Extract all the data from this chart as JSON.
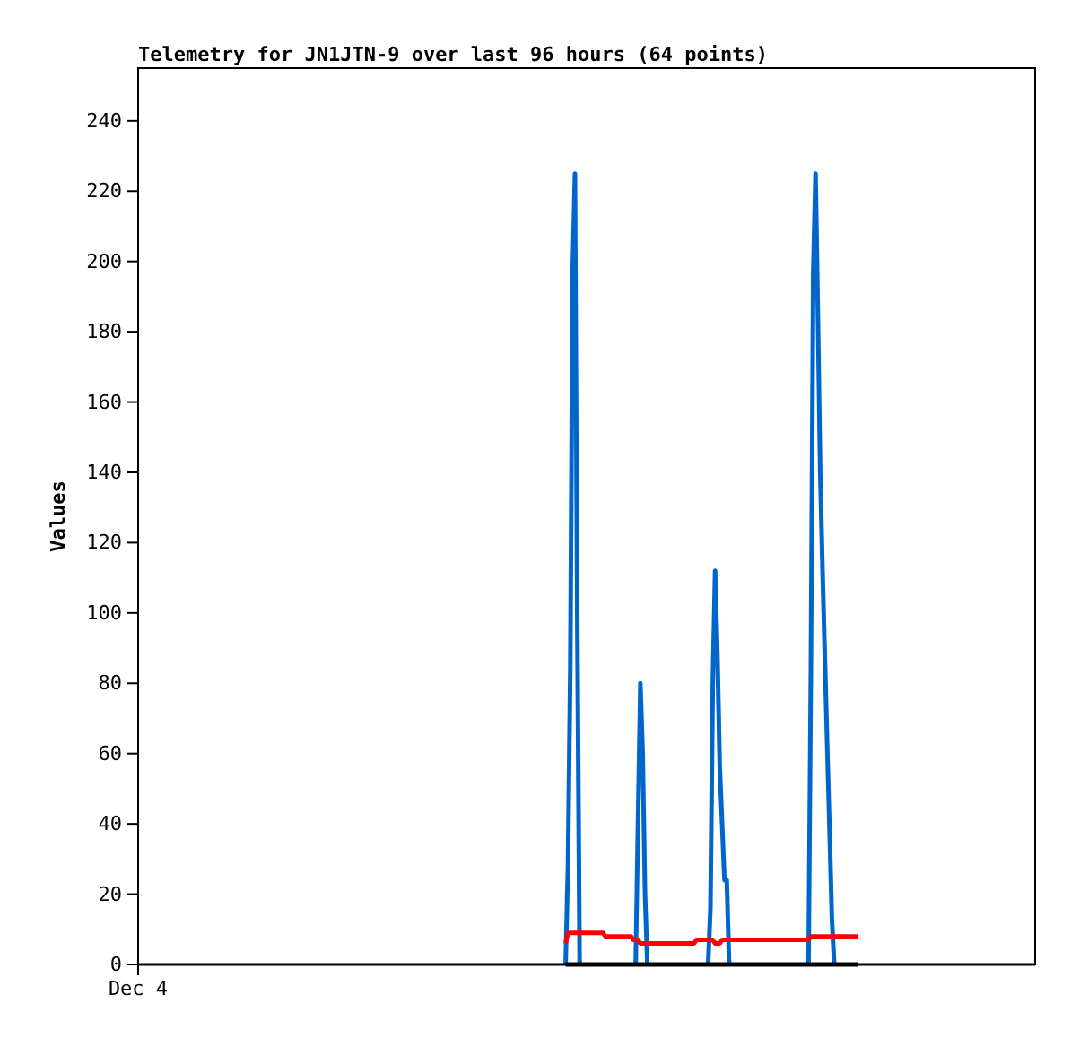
{
  "chart_data": {
    "type": "line",
    "title": "Telemetry for JN1JTN-9 over last 96 hours (64 points)",
    "ylabel": "Values",
    "ylim": [
      0,
      255
    ],
    "yticks": [
      0,
      20,
      40,
      60,
      80,
      100,
      120,
      140,
      160,
      180,
      200,
      220,
      240
    ],
    "grid": false,
    "categories": [
      "Dec 4",
      null,
      null,
      null,
      null,
      null,
      null,
      null,
      null,
      null,
      null,
      null,
      null,
      null,
      null,
      null,
      null,
      null,
      null,
      null,
      null,
      null,
      null,
      null,
      null,
      null,
      null,
      null,
      null,
      null,
      null,
      null,
      null,
      null,
      null,
      null,
      null,
      null,
      null,
      null,
      null,
      null,
      null,
      null,
      null,
      null,
      null,
      null,
      null,
      null,
      null,
      null,
      null,
      null,
      null,
      null,
      null,
      null,
      null,
      null,
      null,
      null,
      null,
      null,
      null,
      null,
      null,
      null,
      null,
      null,
      null,
      null,
      null,
      null,
      null,
      null,
      null,
      null,
      null,
      null,
      null,
      null,
      null,
      null,
      null,
      null,
      null,
      null,
      null,
      null,
      null,
      null,
      null,
      null,
      null,
      null,
      null,
      null,
      null,
      null,
      null,
      null,
      null,
      null,
      null,
      null,
      null,
      null,
      null,
      null,
      null,
      null,
      null,
      null,
      null,
      null,
      null,
      null,
      null,
      null,
      null,
      null,
      null,
      null,
      null,
      null,
      null,
      null,
      null,
      null,
      null,
      null,
      null,
      null,
      null,
      null,
      null,
      null,
      null,
      null,
      null,
      null,
      null,
      null,
      null,
      null,
      null,
      null,
      null,
      null,
      null,
      null,
      null,
      null,
      null,
      null,
      null,
      null,
      null,
      null,
      null,
      null,
      null,
      null,
      null,
      null,
      null,
      null,
      null,
      null,
      null,
      null,
      null,
      null,
      null,
      null,
      null,
      null,
      null,
      null,
      null,
      null,
      null,
      null,
      null,
      null,
      null,
      null,
      null,
      null,
      null,
      null,
      null,
      null,
      null,
      null,
      null,
      null,
      null,
      null,
      null,
      null,
      null,
      null,
      null,
      null,
      null,
      null,
      null,
      null,
      null,
      null,
      null,
      null,
      null,
      null,
      null,
      null,
      null,
      null,
      null,
      null,
      null,
      null,
      null,
      null,
      null,
      null,
      null,
      null,
      null,
      null,
      null,
      null,
      null,
      null,
      null,
      null,
      null,
      null,
      null,
      null,
      null,
      null,
      null,
      null,
      null,
      null,
      null,
      null,
      null,
      null,
      null,
      null,
      null,
      null,
      null,
      null,
      null,
      null,
      null,
      null,
      null,
      null,
      null,
      null,
      null,
      null,
      null,
      null,
      null,
      null,
      null,
      null,
      null,
      null,
      null,
      null,
      null,
      null,
      null,
      null,
      null,
      null,
      null,
      null,
      null,
      null,
      null,
      null,
      null,
      null,
      null,
      null,
      null,
      null,
      null,
      null,
      null,
      null,
      null,
      null,
      null,
      null,
      null,
      null,
      null,
      null,
      null,
      null,
      null,
      null,
      null,
      null,
      null,
      null,
      null,
      null,
      null,
      null,
      null,
      null,
      null,
      null,
      null,
      null,
      null,
      null,
      null,
      null,
      null,
      null,
      null,
      null,
      null,
      null,
      null,
      null,
      null,
      null,
      null,
      null,
      null,
      null,
      null,
      null,
      null,
      null,
      null,
      null,
      null,
      null,
      null,
      null,
      null,
      null,
      null,
      null,
      null,
      null,
      null,
      null,
      null,
      null,
      null,
      null,
      null,
      null,
      null,
      null,
      null,
      null,
      null,
      null,
      null,
      null,
      null,
      null,
      null,
      null,
      null,
      null,
      null,
      null,
      null
    ],
    "series": [
      {
        "color": "#0066cc",
        "values": [
          null,
          null,
          null,
          null,
          null,
          null,
          null,
          null,
          null,
          null,
          null,
          null,
          null,
          null,
          null,
          null,
          null,
          null,
          null,
          null,
          null,
          null,
          null,
          null,
          null,
          null,
          null,
          null,
          null,
          null,
          null,
          null,
          null,
          null,
          null,
          null,
          null,
          null,
          null,
          null,
          null,
          null,
          null,
          null,
          null,
          null,
          null,
          null,
          null,
          null,
          null,
          null,
          null,
          null,
          null,
          null,
          null,
          null,
          null,
          null,
          null,
          null,
          null,
          null,
          null,
          null,
          null,
          null,
          null,
          null,
          null,
          null,
          null,
          null,
          null,
          null,
          null,
          null,
          null,
          null,
          null,
          null,
          null,
          null,
          null,
          null,
          null,
          null,
          null,
          null,
          null,
          null,
          null,
          null,
          null,
          null,
          null,
          null,
          null,
          null,
          null,
          null,
          null,
          null,
          null,
          null,
          null,
          null,
          null,
          null,
          null,
          null,
          null,
          null,
          null,
          null,
          null,
          null,
          null,
          null,
          null,
          null,
          null,
          null,
          null,
          null,
          null,
          null,
          null,
          null,
          null,
          null,
          null,
          null,
          null,
          null,
          null,
          null,
          null,
          null,
          null,
          null,
          null,
          null,
          null,
          null,
          null,
          null,
          null,
          null,
          null,
          null,
          null,
          null,
          null,
          null,
          null,
          null,
          null,
          null,
          null,
          null,
          null,
          null,
          null,
          null,
          null,
          null,
          null,
          null,
          null,
          null,
          null,
          null,
          null,
          null,
          null,
          null,
          null,
          null,
          null,
          null,
          null,
          0,
          28,
          84,
          197,
          225,
          97,
          0,
          null,
          null,
          null,
          null,
          null,
          null,
          null,
          null,
          null,
          null,
          null,
          null,
          null,
          null,
          null,
          null,
          null,
          null,
          null,
          null,
          null,
          null,
          null,
          0,
          41,
          80,
          60,
          20,
          0,
          null,
          null,
          null,
          null,
          null,
          null,
          null,
          null,
          null,
          null,
          null,
          null,
          null,
          null,
          null,
          null,
          null,
          null,
          null,
          null,
          null,
          null,
          null,
          null,
          null,
          0,
          16,
          80,
          112,
          88,
          56,
          40,
          24,
          24,
          0,
          null,
          null,
          null,
          null,
          null,
          null,
          null,
          null,
          null,
          null,
          null,
          null,
          null,
          null,
          null,
          null,
          null,
          null,
          null,
          null,
          null,
          null,
          null,
          null,
          null,
          null,
          null,
          null,
          null,
          null,
          null,
          null,
          null,
          0,
          84,
          197,
          225,
          185,
          140,
          112,
          87,
          62,
          38,
          13,
          0,
          null,
          null,
          null,
          null,
          null,
          null,
          null,
          null,
          null,
          null,
          null,
          null,
          null,
          null,
          null,
          null,
          null,
          null,
          null,
          null,
          null,
          null,
          null,
          null,
          null,
          null,
          null,
          null,
          null,
          null,
          null,
          null,
          null,
          null,
          null,
          null,
          null,
          null,
          null,
          null,
          null,
          null,
          null,
          null,
          null,
          null,
          null,
          null,
          null,
          null,
          null,
          null,
          null,
          null,
          null,
          null,
          null,
          null,
          null,
          null,
          null,
          null,
          null,
          null,
          null,
          null,
          null,
          null,
          null,
          null,
          null,
          null,
          null,
          null,
          null,
          null,
          null,
          null,
          null,
          null,
          null,
          null,
          null,
          null,
          null,
          null
        ]
      },
      {
        "color": "#ff0000",
        "values": [
          null,
          null,
          null,
          null,
          null,
          null,
          null,
          null,
          null,
          null,
          null,
          null,
          null,
          null,
          null,
          null,
          null,
          null,
          null,
          null,
          null,
          null,
          null,
          null,
          null,
          null,
          null,
          null,
          null,
          null,
          null,
          null,
          null,
          null,
          null,
          null,
          null,
          null,
          null,
          null,
          null,
          null,
          null,
          null,
          null,
          null,
          null,
          null,
          null,
          null,
          null,
          null,
          null,
          null,
          null,
          null,
          null,
          null,
          null,
          null,
          null,
          null,
          null,
          null,
          null,
          null,
          null,
          null,
          null,
          null,
          null,
          null,
          null,
          null,
          null,
          null,
          null,
          null,
          null,
          null,
          null,
          null,
          null,
          null,
          null,
          null,
          null,
          null,
          null,
          null,
          null,
          null,
          null,
          null,
          null,
          null,
          null,
          null,
          null,
          null,
          null,
          null,
          null,
          null,
          null,
          null,
          null,
          null,
          null,
          null,
          null,
          null,
          null,
          null,
          null,
          null,
          null,
          null,
          null,
          null,
          null,
          null,
          null,
          null,
          null,
          null,
          null,
          null,
          null,
          null,
          null,
          null,
          null,
          null,
          null,
          null,
          null,
          null,
          null,
          null,
          null,
          null,
          null,
          null,
          null,
          null,
          null,
          null,
          null,
          null,
          null,
          null,
          null,
          null,
          null,
          null,
          null,
          null,
          null,
          null,
          null,
          null,
          null,
          null,
          null,
          null,
          null,
          null,
          null,
          null,
          null,
          null,
          null,
          null,
          null,
          null,
          null,
          null,
          null,
          null,
          null,
          null,
          null,
          6,
          9,
          9,
          9,
          9,
          9,
          9,
          9,
          9,
          9,
          9,
          9,
          9,
          9,
          9,
          9,
          9,
          8,
          8,
          8,
          8,
          8,
          8,
          8,
          8,
          8,
          8,
          8,
          8,
          7,
          7,
          7,
          6,
          6,
          6,
          6,
          6,
          6,
          6,
          6,
          6,
          6,
          6,
          6,
          6,
          6,
          6,
          6,
          6,
          6,
          6,
          6,
          6,
          6,
          6,
          6,
          7,
          7,
          7,
          7,
          7,
          7,
          7,
          7,
          6,
          6,
          6,
          7,
          7,
          7,
          7,
          7,
          7,
          7,
          7,
          7,
          7,
          7,
          7,
          7,
          7,
          7,
          7,
          7,
          7,
          7,
          7,
          7,
          7,
          7,
          7,
          7,
          7,
          7,
          7,
          7,
          7,
          7,
          7,
          7,
          7,
          7,
          7,
          7,
          7,
          8,
          8,
          8,
          8,
          8,
          8,
          8,
          8,
          8,
          8,
          8,
          8,
          8,
          8,
          8,
          8,
          8,
          8,
          8,
          8,
          8,
          null,
          null,
          null,
          null,
          null,
          null,
          null,
          null,
          null,
          null,
          null,
          null,
          null,
          null,
          null,
          null,
          null,
          null,
          null,
          null,
          null,
          null,
          null,
          null,
          null,
          null,
          null,
          null,
          null,
          null,
          null,
          null,
          null,
          null,
          null,
          null,
          null,
          null,
          null,
          null,
          null,
          null,
          null,
          null,
          null,
          null,
          null,
          null,
          null,
          null,
          null,
          null,
          null,
          null,
          null,
          null,
          null,
          null,
          null,
          null,
          null,
          null,
          null,
          null,
          null,
          null,
          null,
          null,
          null,
          null,
          null,
          null,
          null,
          null,
          null,
          null
        ]
      },
      {
        "color": "#000000",
        "values": [
          null,
          null,
          null,
          null,
          null,
          null,
          null,
          null,
          null,
          null,
          null,
          null,
          null,
          null,
          null,
          null,
          null,
          null,
          null,
          null,
          null,
          null,
          null,
          null,
          null,
          null,
          null,
          null,
          null,
          null,
          null,
          null,
          null,
          null,
          null,
          null,
          null,
          null,
          null,
          null,
          null,
          null,
          null,
          null,
          null,
          null,
          null,
          null,
          null,
          null,
          null,
          null,
          null,
          null,
          null,
          null,
          null,
          null,
          null,
          null,
          null,
          null,
          null,
          null,
          null,
          null,
          null,
          null,
          null,
          null,
          null,
          null,
          null,
          null,
          null,
          null,
          null,
          null,
          null,
          null,
          null,
          null,
          null,
          null,
          null,
          null,
          null,
          null,
          null,
          null,
          null,
          null,
          null,
          null,
          null,
          null,
          null,
          null,
          null,
          null,
          null,
          null,
          null,
          null,
          null,
          null,
          null,
          null,
          null,
          null,
          null,
          null,
          null,
          null,
          null,
          null,
          null,
          null,
          null,
          null,
          null,
          null,
          null,
          null,
          null,
          null,
          null,
          null,
          null,
          null,
          null,
          null,
          null,
          null,
          null,
          null,
          null,
          null,
          null,
          null,
          null,
          null,
          null,
          null,
          null,
          null,
          null,
          null,
          null,
          null,
          null,
          null,
          null,
          null,
          null,
          null,
          null,
          null,
          null,
          null,
          null,
          null,
          null,
          null,
          null,
          null,
          null,
          null,
          null,
          null,
          null,
          null,
          null,
          null,
          null,
          null,
          null,
          null,
          null,
          null,
          null,
          null,
          null,
          0,
          0,
          0,
          0,
          0,
          0,
          0,
          0,
          0,
          0,
          0,
          0,
          0,
          0,
          0,
          0,
          0,
          0,
          0,
          0,
          0,
          0,
          0,
          0,
          0,
          0,
          0,
          0,
          0,
          0,
          0,
          0,
          0,
          0,
          0,
          0,
          0,
          0,
          0,
          0,
          0,
          0,
          0,
          0,
          0,
          0,
          0,
          0,
          0,
          0,
          0,
          0,
          0,
          0,
          0,
          0,
          0,
          0,
          0,
          0,
          0,
          0,
          0,
          0,
          0,
          0,
          0,
          0,
          0,
          0,
          0,
          0,
          0,
          0,
          0,
          0,
          0,
          0,
          0,
          0,
          0,
          0,
          0,
          0,
          0,
          0,
          0,
          0,
          0,
          0,
          0,
          0,
          0,
          0,
          0,
          0,
          0,
          0,
          0,
          0,
          0,
          0,
          0,
          0,
          0,
          0,
          0,
          0,
          0,
          0,
          0,
          0,
          0,
          0,
          0,
          0,
          0,
          0,
          0,
          0,
          0,
          0,
          0,
          0,
          0,
          0,
          null,
          null,
          null,
          null,
          null,
          null,
          null,
          null,
          null,
          null,
          null,
          null,
          null,
          null,
          null,
          null,
          null,
          null,
          null,
          null,
          null,
          null,
          null,
          null,
          null,
          null,
          null,
          null,
          null,
          null,
          null,
          null,
          null,
          null,
          null,
          null,
          null,
          null,
          null,
          null,
          null,
          null,
          null,
          null,
          null,
          null,
          null,
          null,
          null,
          null,
          null,
          null,
          null,
          null,
          null,
          null,
          null,
          null,
          null,
          null,
          null,
          null,
          null,
          null,
          null,
          null,
          null,
          null,
          null,
          null,
          null,
          null,
          null,
          null,
          null,
          null
        ]
      }
    ]
  }
}
